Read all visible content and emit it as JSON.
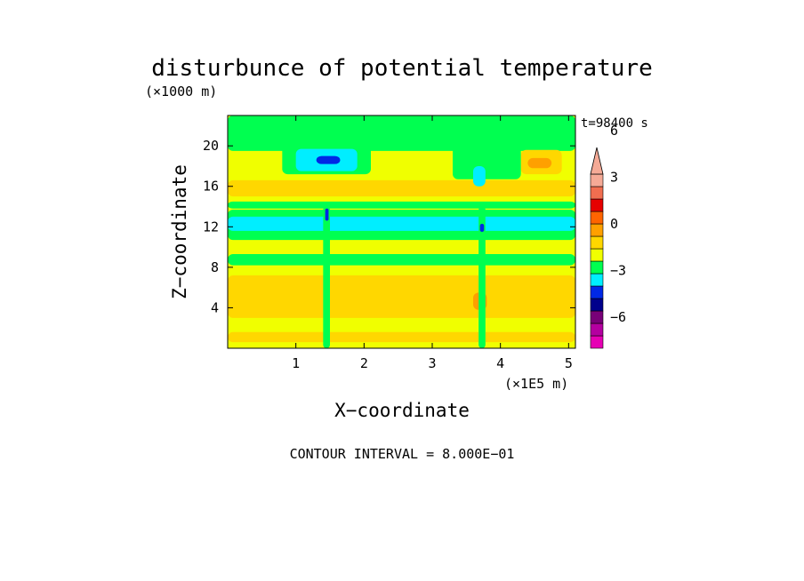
{
  "chart_data": {
    "type": "heatmap",
    "title": "disturbunce of potential temperature",
    "xlabel": "X−coordinate",
    "ylabel": "Z−coordinate",
    "x_unit": "(×1E5 m)",
    "y_unit": "(×1000 m)",
    "time_label": "t=98400 s",
    "footer": "CONTOUR INTERVAL = 8.000E−01",
    "xlim": [
      0,
      5.1
    ],
    "ylim": [
      0,
      23
    ],
    "xticks": [
      1,
      2,
      3,
      4,
      5
    ],
    "yticks": [
      4,
      8,
      12,
      16,
      20
    ],
    "xtick_labels": [
      "1",
      "2",
      "3",
      "4",
      "5"
    ],
    "ytick_labels": [
      "4",
      "8",
      "12",
      "16",
      "20"
    ],
    "contour_interval": 0.8,
    "colorbar": {
      "colors": [
        "#e600b4",
        "#b400a0",
        "#780078",
        "#00008c",
        "#0028e6",
        "#00eeff",
        "#00ff50",
        "#f0ff00",
        "#ffd700",
        "#ffa000",
        "#ff6400",
        "#e60000",
        "#f06e50",
        "#f5aa96"
      ],
      "tick_values": [
        -6,
        -3,
        0,
        3,
        6
      ],
      "tick_labels": [
        "−6",
        "−3",
        "0",
        "3",
        "6"
      ],
      "extend": "both"
    },
    "field": {
      "background_color": "#f0ff00",
      "regions": [
        {
          "x": [
            0,
            5.1
          ],
          "y": [
            10.7,
            13.7
          ],
          "color": "#00ff50"
        },
        {
          "x": [
            0,
            5.1
          ],
          "y": [
            11.6,
            13.0
          ],
          "color": "#00eeff"
        },
        {
          "x": [
            0,
            5.1
          ],
          "y": [
            8.2,
            9.3
          ],
          "color": "#00ff50"
        },
        {
          "x": [
            0,
            5.1
          ],
          "y": [
            13.8,
            14.5
          ],
          "color": "#00ff50"
        },
        {
          "x": [
            0,
            5.1
          ],
          "y": [
            19.5,
            23
          ],
          "color": "#00ff50"
        },
        {
          "x": [
            0.8,
            2.1
          ],
          "y": [
            17.2,
            21.2
          ],
          "color": "#00ff50"
        },
        {
          "x": [
            1.0,
            1.9
          ],
          "y": [
            17.5,
            19.7
          ],
          "color": "#00eeff"
        },
        {
          "x": [
            1.3,
            1.65
          ],
          "y": [
            18.2,
            19.0
          ],
          "color": "#0028e6"
        },
        {
          "x": [
            0,
            5.1
          ],
          "y": [
            3.0,
            7.2
          ],
          "color": "#ffd700"
        },
        {
          "x": [
            0,
            5.1
          ],
          "y": [
            0.6,
            1.6
          ],
          "color": "#ffd700"
        },
        {
          "x": [
            4.3,
            4.9
          ],
          "y": [
            17.2,
            19.6
          ],
          "color": "#ffd700"
        },
        {
          "x": [
            4.4,
            4.75
          ],
          "y": [
            17.8,
            18.8
          ],
          "color": "#ffa000"
        },
        {
          "x": [
            3.6,
            3.8
          ],
          "y": [
            3.8,
            5.5
          ],
          "color": "#ffa000"
        },
        {
          "x": [
            1.4,
            1.5
          ],
          "y": [
            0,
            14
          ],
          "color": "#00ff50"
        },
        {
          "x": [
            3.68,
            3.78
          ],
          "y": [
            0,
            14
          ],
          "color": "#00ff50"
        },
        {
          "x": [
            1.43,
            1.48
          ],
          "y": [
            12.6,
            13.8
          ],
          "color": "#0028e6"
        },
        {
          "x": [
            3.7,
            3.76
          ],
          "y": [
            11.5,
            12.3
          ],
          "color": "#0028e6"
        },
        {
          "x": [
            0,
            5.1
          ],
          "y": [
            15.0,
            16.6
          ],
          "color": "#ffd700"
        },
        {
          "x": [
            3.3,
            4.3
          ],
          "y": [
            16.7,
            22.0
          ],
          "color": "#00ff50"
        },
        {
          "x": [
            3.6,
            3.78
          ],
          "y": [
            16.0,
            18.0
          ],
          "color": "#00eeff"
        }
      ]
    }
  }
}
